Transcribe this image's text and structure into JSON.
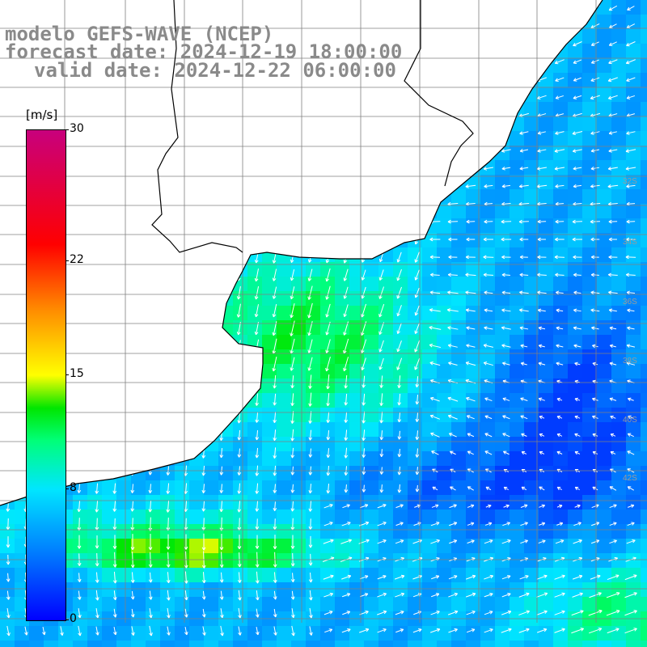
{
  "title": {
    "line1": "modelo GEFS-WAVE (NCEP)",
    "line2": "forecast date: 2024-12-19 18:00:00",
    "line3": "valid date: 2024-12-22 06:00:00"
  },
  "colorbar": {
    "units": "[m/s]",
    "min": 0,
    "max": 30,
    "ticks": [
      {
        "value": 30,
        "label": "30"
      },
      {
        "value": 22,
        "label": "22"
      },
      {
        "value": 15,
        "label": "15"
      },
      {
        "value": 8,
        "label": "8"
      },
      {
        "value": 0,
        "label": "0"
      }
    ],
    "stops": [
      {
        "value": 0,
        "color": "#0000ff"
      },
      {
        "value": 4,
        "color": "#0078ff"
      },
      {
        "value": 8,
        "color": "#00e6ff"
      },
      {
        "value": 11,
        "color": "#00ff78"
      },
      {
        "value": 13,
        "color": "#00e600"
      },
      {
        "value": 15,
        "color": "#ffff00"
      },
      {
        "value": 19,
        "color": "#ff8c00"
      },
      {
        "value": 23,
        "color": "#ff0000"
      },
      {
        "value": 30,
        "color": "#c8007d"
      }
    ]
  },
  "colors": {
    "land": "#ffffff",
    "grid": "#808080",
    "coast": "#000000",
    "arrow": "#ffffff",
    "title": "#8a8a8a",
    "lat_label": "#9a9a9a"
  },
  "lat_labels": [
    "32S",
    "34S",
    "36S",
    "38S",
    "40S",
    "42S"
  ],
  "icons": {
    "arrow": "wind-arrow-icon"
  }
}
